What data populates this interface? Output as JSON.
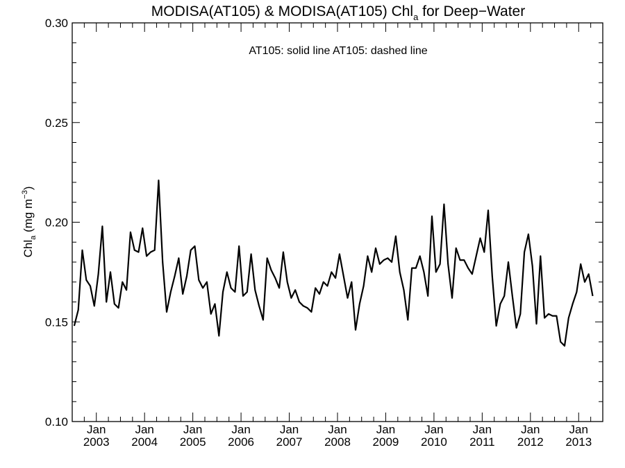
{
  "chart_data": {
    "type": "line",
    "title": {
      "main": "MODISA(AT105) & MODISA(AT105)  Chl",
      "sub": "a",
      "rest": " for Deep−Water"
    },
    "annotation": "AT105: solid line   AT105: dashed line",
    "ylabel": {
      "main": "Chl",
      "sub": "a",
      "mid": " (mg m",
      "sup": "−3",
      "end": ")"
    },
    "ylim": [
      0.1,
      0.3
    ],
    "yticks": [
      "0.10",
      "0.15",
      "0.20",
      "0.25",
      "0.30"
    ],
    "xlim": [
      "2002-07",
      "2013-06"
    ],
    "xticks": [
      {
        "date": "2003-01",
        "month": "Jan",
        "year": "2003"
      },
      {
        "date": "2004-01",
        "month": "Jan",
        "year": "2004"
      },
      {
        "date": "2005-01",
        "month": "Jan",
        "year": "2005"
      },
      {
        "date": "2006-01",
        "month": "Jan",
        "year": "2006"
      },
      {
        "date": "2007-01",
        "month": "Jan",
        "year": "2007"
      },
      {
        "date": "2008-01",
        "month": "Jan",
        "year": "2008"
      },
      {
        "date": "2009-01",
        "month": "Jan",
        "year": "2009"
      },
      {
        "date": "2010-01",
        "month": "Jan",
        "year": "2010"
      },
      {
        "date": "2011-01",
        "month": "Jan",
        "year": "2011"
      },
      {
        "date": "2012-01",
        "month": "Jan",
        "year": "2012"
      },
      {
        "date": "2013-01",
        "month": "Jan",
        "year": "2013"
      }
    ],
    "grid": false,
    "series": [
      {
        "style": "solid",
        "color": "#000000",
        "start": "2002-07",
        "values": [
          0.148,
          0.156,
          0.186,
          0.171,
          0.168,
          0.158,
          0.174,
          0.198,
          0.16,
          0.175,
          0.159,
          0.157,
          0.17,
          0.166,
          0.195,
          0.186,
          0.185,
          0.197,
          0.183,
          0.185,
          0.186,
          0.221,
          0.18,
          0.155,
          0.165,
          0.173,
          0.182,
          0.164,
          0.173,
          0.186,
          0.188,
          0.171,
          0.167,
          0.17,
          0.154,
          0.159,
          0.143,
          0.165,
          0.175,
          0.167,
          0.165,
          0.188,
          0.163,
          0.165,
          0.184,
          0.166,
          0.158,
          0.151,
          0.182,
          0.176,
          0.172,
          0.167,
          0.185,
          0.17,
          0.162,
          0.166,
          0.16,
          0.158,
          0.157,
          0.155,
          0.167,
          0.164,
          0.17,
          0.168,
          0.175,
          0.172,
          0.184,
          0.173,
          0.162,
          0.17,
          0.146,
          0.159,
          0.168,
          0.183,
          0.175,
          0.187,
          0.179,
          0.181,
          0.182,
          0.18,
          0.193,
          0.175,
          0.166,
          0.151,
          0.177,
          0.177,
          0.183,
          0.175,
          0.163,
          0.203,
          0.175,
          0.179,
          0.209,
          0.179,
          0.162,
          0.187,
          0.181,
          0.181,
          0.177,
          0.174,
          0.183,
          0.192,
          0.185,
          0.206,
          0.173,
          0.148,
          0.159,
          0.163,
          0.18,
          0.163,
          0.147,
          0.154,
          0.185,
          0.194,
          0.178,
          0.149,
          0.183,
          0.152,
          0.154,
          0.153,
          0.153,
          0.14,
          0.138,
          0.152,
          0.159,
          0.165,
          0.179,
          0.17,
          0.174,
          0.163
        ]
      }
    ]
  }
}
